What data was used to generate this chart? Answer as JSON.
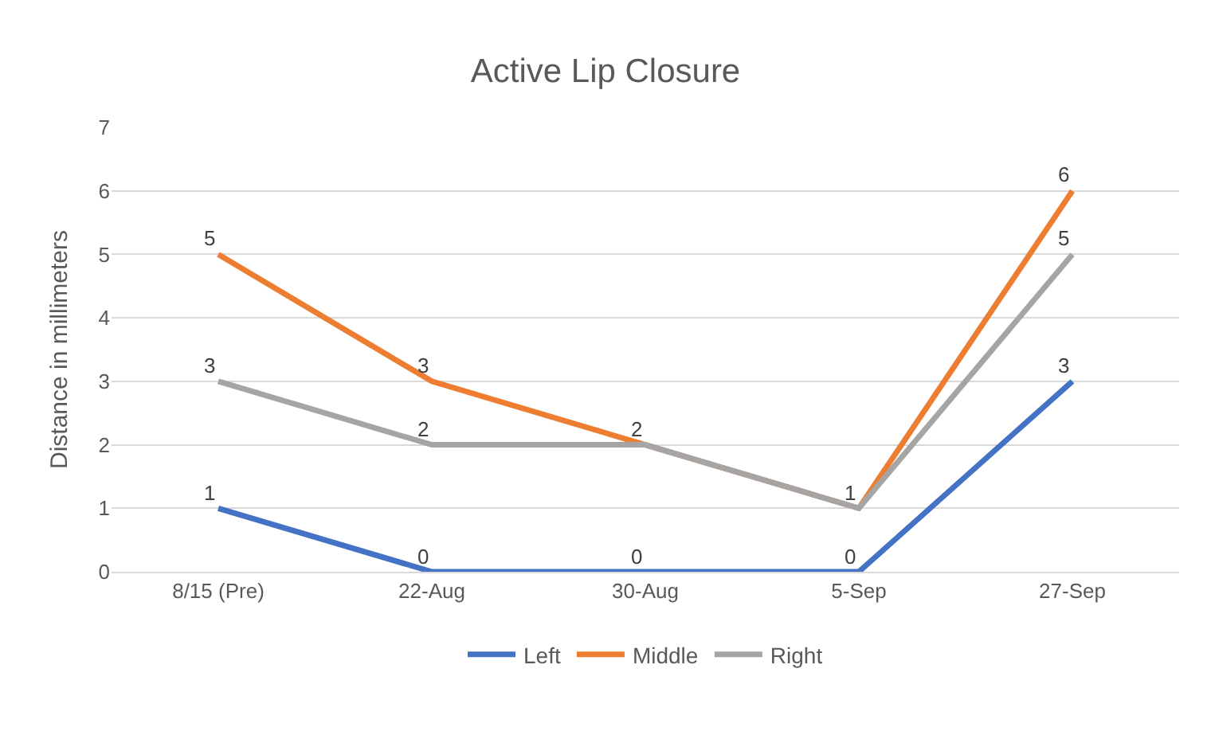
{
  "chart_data": {
    "type": "line",
    "title": "Active Lip Closure",
    "ylabel": "Distance in millimeters",
    "categories": [
      "8/15 (Pre)",
      "22-Aug",
      "30-Aug",
      "5-Sep",
      "27-Sep"
    ],
    "series": [
      {
        "name": "Left",
        "color": "#4472c4",
        "values": [
          1,
          0,
          0,
          0,
          3
        ],
        "value_labels": [
          "1",
          "0",
          "0",
          "0",
          "3"
        ]
      },
      {
        "name": "Middle",
        "color": "#ed7d31",
        "values": [
          5,
          3,
          2,
          1,
          6
        ],
        "value_labels": [
          "5",
          "3",
          "2",
          "1",
          "6"
        ]
      },
      {
        "name": "Right",
        "color": "#a5a5a5",
        "values": [
          3,
          2,
          2,
          1,
          5
        ],
        "value_labels": [
          "3",
          "2",
          null,
          null,
          "5"
        ]
      }
    ],
    "ylim": [
      0,
      7
    ],
    "yticks": [
      0,
      1,
      2,
      3,
      4,
      5,
      6,
      7
    ],
    "grid": "y",
    "legend": "bottom",
    "marker": "none",
    "line_style": "solid"
  }
}
